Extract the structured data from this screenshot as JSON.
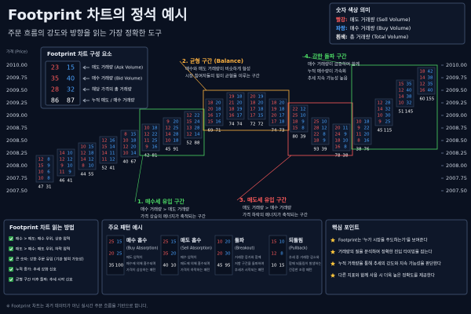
{
  "header": {
    "title": "Footprint 차트의 정석 예시",
    "subtitle": "주문 흐름의 강도와 방향을 읽는 가장 정확한 도구"
  },
  "color_legend": {
    "title": "숫자 색상 의미",
    "items": [
      {
        "label": "빨강:",
        "text": "매도 거래량 (Sell Volume)",
        "color": "#ff5b5b"
      },
      {
        "label": "파랑:",
        "text": "매수 거래량 (Buy Volume)",
        "color": "#4aa3ff"
      },
      {
        "label": "흰색:",
        "text": "총 거래량 (Total Volume)",
        "color": "#ffffff"
      }
    ]
  },
  "component_legend": {
    "title": "Footprint 차트 구성 요소",
    "rows": [
      {
        "values": [
          23,
          15
        ],
        "text": "매도 거래량 (Ask Volume)"
      },
      {
        "values": [
          35,
          40
        ],
        "text": "매수 거래량 (Bid Volume)"
      },
      {
        "values": [
          28,
          32
        ],
        "text": "해당 가격의 총 거래량"
      },
      {
        "values": [
          86,
          87
        ],
        "text": "누적 매도 / 매수 거래량"
      }
    ]
  },
  "chart_data": {
    "type": "footprint",
    "y_label": "가격 (Price)",
    "ask_color": "#ff5b5b",
    "bid_color": "#4aa3ff",
    "total_color": "#ffffff",
    "ylim": [
      2007.5,
      2010.0
    ],
    "yticks": [
      {
        "value": 2010.0,
        "label": "2010.00"
      },
      {
        "value": 2009.75,
        "label": "2009.75"
      },
      {
        "value": 2009.5,
        "label": "2009.50"
      },
      {
        "value": 2009.25,
        "label": "2009.25"
      },
      {
        "value": 2009.0,
        "label": "2009.00"
      },
      {
        "value": 2008.75,
        "label": "2008.75"
      },
      {
        "value": 2008.5,
        "label": "2008.50"
      },
      {
        "value": 2008.25,
        "label": "2008.25"
      },
      {
        "value": 2008.0,
        "label": "2008.00"
      },
      {
        "value": 2007.75,
        "label": "2007.75"
      },
      {
        "value": 2007.5,
        "label": "2007.50"
      }
    ],
    "candles": [
      {
        "high": 2008.125,
        "low": 2007.75,
        "ask": [
          12,
          15,
          10,
          10
        ],
        "bid": [
          8,
          9,
          6,
          8
        ],
        "totals": [
          47,
          31
        ]
      },
      {
        "high": 2008.25,
        "low": 2007.875,
        "ask": [
          14,
          12,
          9,
          11
        ],
        "bid": [
          10,
          12,
          10,
          9
        ],
        "totals": [
          46,
          41
        ]
      },
      {
        "high": 2008.375,
        "low": 2008.0,
        "ask": [
          10,
          12,
          14,
          8
        ],
        "bid": [
          15,
          18,
          12,
          10
        ],
        "totals": [
          44,
          55
        ]
      },
      {
        "high": 2008.5,
        "low": 2008.125,
        "ask": [
          12,
          15,
          14,
          11
        ],
        "bid": [
          16,
          14,
          11,
          12
        ],
        "totals": [
          52,
          41
        ]
      },
      {
        "high": 2008.625,
        "low": 2008.25,
        "ask": [
          8,
          10,
          12,
          10
        ],
        "bid": [
          15,
          18,
          20,
          14
        ],
        "totals": [
          40,
          67
        ]
      },
      {
        "high": 2008.75,
        "low": 2008.375,
        "ask": [
          10,
          12,
          11,
          9
        ],
        "bid": [
          18,
          22,
          25,
          16
        ],
        "totals": [
          42,
          81
        ]
      },
      {
        "high": 2008.875,
        "low": 2008.5,
        "ask": [
          9,
          12,
          14,
          10
        ],
        "bid": [
          20,
          25,
          28,
          18
        ],
        "totals": [
          45,
          91
        ]
      },
      {
        "high": 2009.0,
        "low": 2008.625,
        "ask": [
          12,
          15,
          13,
          12
        ],
        "bid": [
          22,
          24,
          28,
          14
        ],
        "totals": [
          52,
          88
        ]
      },
      {
        "high": 2009.25,
        "low": 2008.875,
        "ask": [
          18,
          20,
          16,
          15
        ],
        "bid": [
          20,
          18,
          17,
          16
        ],
        "totals": [
          69,
          71
        ]
      },
      {
        "high": 2009.375,
        "low": 2009.0,
        "ask": [
          19,
          21,
          18,
          16
        ],
        "bid": [
          18,
          20,
          19,
          17
        ],
        "totals": [
          74,
          74
        ]
      },
      {
        "high": 2009.375,
        "low": 2009.0,
        "ask": [
          20,
          18,
          17,
          17
        ],
        "bid": [
          19,
          20,
          18,
          15
        ],
        "totals": [
          72,
          72
        ]
      },
      {
        "high": 2009.25,
        "low": 2008.875,
        "ask": [
          18,
          19,
          20,
          17
        ],
        "bid": [
          20,
          18,
          17,
          18
        ],
        "totals": [
          74,
          73
        ]
      },
      {
        "high": 2009.125,
        "low": 2008.75,
        "ask": [
          22,
          25,
          18,
          15
        ],
        "bid": [
          12,
          10,
          9,
          8
        ],
        "totals": [
          80,
          39
        ]
      },
      {
        "high": 2008.875,
        "low": 2008.5,
        "ask": [
          25,
          28,
          22,
          18
        ],
        "bid": [
          10,
          12,
          8,
          9
        ],
        "totals": [
          93,
          39
        ]
      },
      {
        "high": 2008.75,
        "low": 2008.375,
        "ask": [
          20,
          24,
          18,
          16
        ],
        "bid": [
          11,
          9,
          10,
          8
        ],
        "totals": [
          78,
          38
        ]
      },
      {
        "high": 2008.875,
        "low": 2008.5,
        "ask": [
          10,
          9,
          11,
          8
        ],
        "bid": [
          18,
          22,
          20,
          16
        ],
        "totals": [
          38,
          76
        ]
      },
      {
        "high": 2009.25,
        "low": 2008.875,
        "ask": [
          12,
          14,
          10,
          9
        ],
        "bid": [
          28,
          32,
          30,
          25
        ],
        "totals": [
          45,
          115
        ]
      },
      {
        "high": 2009.625,
        "low": 2009.25,
        "ask": [
          15,
          12,
          14,
          10
        ],
        "bid": [
          35,
          40,
          38,
          32
        ],
        "totals": [
          51,
          145
        ]
      },
      {
        "high": 2009.875,
        "low": 2009.5,
        "ask": [
          18,
          14,
          12,
          16
        ],
        "bid": [
          42,
          38,
          35,
          40
        ],
        "totals": [
          60,
          155
        ]
      }
    ]
  },
  "zones": [
    {
      "label": "1. 매수세 유입 구간",
      "color": "#4cd964",
      "desc": [
        "매수 거래량 > 매도 거래량",
        "가격 상승의 에너지가 축적되는 구간"
      ]
    },
    {
      "label": "2. 균형 구간 (Balance)",
      "color": "#ffb340",
      "desc": [
        "매수와 매도 거래량이 비슷하게 형성",
        "시장 참여자들의 힘이 균형을 이루는 구간"
      ]
    },
    {
      "label": "3. 매도세 유입 구간",
      "color": "#ff5b5b",
      "desc": [
        "매도 거래량 > 매수 거래량",
        "가격 하락의 에너지가 축적되는 구간"
      ]
    },
    {
      "label": "4. 강한 돌파 구간",
      "color": "#4cd964",
      "desc": [
        "매수 거래량이 급증하며 함께",
        "누적 매수량이 가속화",
        "추세 지속 가능성 높음"
      ]
    }
  ],
  "reading_guide": {
    "title": "Footprint 차트 읽는 방법",
    "items": [
      "매수 > 매도: 매수 우위, 상승 압력",
      "매도 > 매수: 매도 우위, 하락 압력",
      "큰 숫자: 강한 주문 유입 (기관 참여 가능성)",
      "누적 증가: 추세 강화 신호",
      "균형 구간 이후 돌파: 추세 시작 신호"
    ]
  },
  "patterns": {
    "title": "주요 패턴 예시",
    "items": [
      {
        "name": "매수 흡수",
        "en": "(Buy Absorption)",
        "desc": [
          "매도 압력이",
          "매수에 의해 흡수되며",
          "가격이 상승하는 패턴"
        ],
        "cells": [
          [
            25,
            15
          ],
          [
            20,
            25
          ],
          [
            35,
            100
          ]
        ]
      },
      {
        "name": "매도 흡수",
        "en": "(Sell Absorption)",
        "desc": [
          "매수 압력이",
          "매도에 의해 흡수되며",
          "가격이 하락하는 패턴"
        ],
        "cells": [
          [
            25,
            15
          ],
          [
            35,
            20
          ],
          [
            40,
            10
          ]
        ]
      },
      {
        "name": "돌파",
        "en": "(Breakout)",
        "desc": [
          "거래량 증가와 함께",
          "저항 구간을 돌파하여",
          "추세가 시작되는 패턴"
        ],
        "cells": [
          [
            10,
            20
          ],
          [
            20,
            30
          ],
          [
            45,
            95
          ]
        ]
      },
      {
        "name": "되돌림",
        "en": "(Pullback)",
        "desc": [
          "추세 중 거래량 감소와",
          "함께 되돌림이 발생하는",
          "건강한 조정 패턴"
        ],
        "cells": [
          [
            15,
            10
          ],
          [
            12,
            8
          ],
          [
            10,
            15
          ]
        ]
      }
    ]
  },
  "key_points": {
    "title": "핵심 포인트",
    "items": [
      "Footprint는 '누가 시장을 주도하는가'를 보여준다",
      "거래량의 질을 분석하여 정확한 진입 타이밍을 잡는다",
      "누적 거래량을 통해 추세의 강도와 지속 가능성을 판단한다",
      "다른 지표와 함께 사용 시 더욱 높은 정확도를 제공한다"
    ]
  },
  "footer": "※ Footprint 차트는 과거 데이터가 아닌 실시간 주문 흐름을 기반으로 합니다."
}
